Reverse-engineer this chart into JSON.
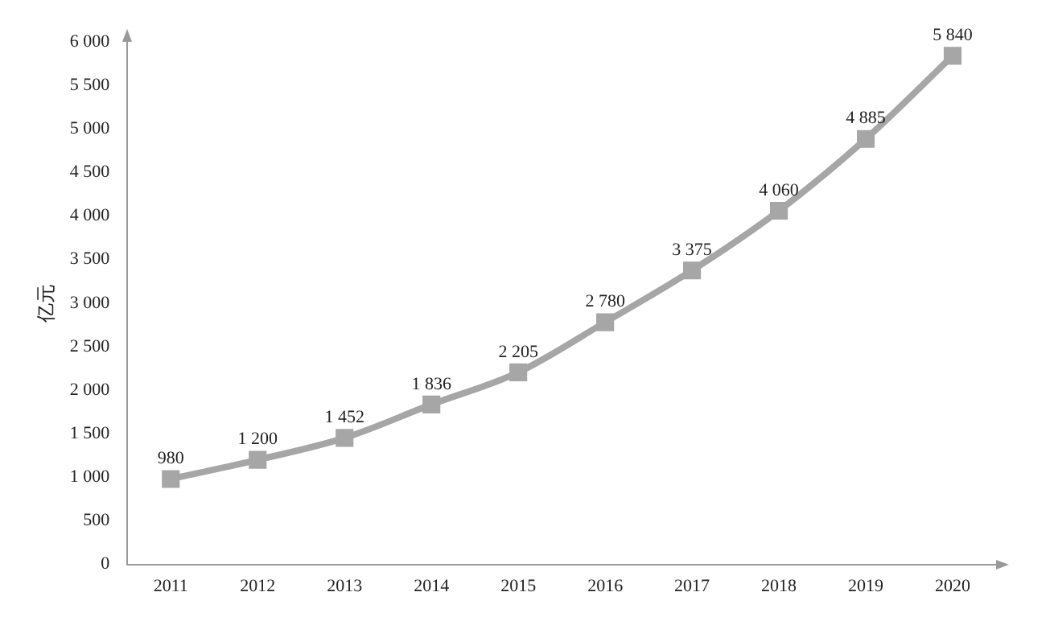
{
  "chart_data": {
    "type": "line",
    "ylabel": "亿元",
    "categories": [
      "2011",
      "2012",
      "2013",
      "2014",
      "2015",
      "2016",
      "2017",
      "2018",
      "2019",
      "2020"
    ],
    "series": [
      {
        "color": "#a6a6a6",
        "values": [
          980,
          1200,
          1452,
          1836,
          2205,
          2780,
          3375,
          4060,
          4885,
          5840
        ],
        "value_labels": [
          "980",
          "1 200",
          "1 452",
          "1 836",
          "2 205",
          "2 780",
          "3 375",
          "4 060",
          "4 885",
          "5 840"
        ]
      }
    ],
    "ylim": [
      0,
      6000
    ],
    "yticks": [
      0,
      500,
      {
        "value": 1000,
        "label": "1 000"
      },
      {
        "value": 1500,
        "label": "1 500"
      },
      {
        "value": 2000,
        "label": "2 000"
      },
      {
        "value": 2500,
        "label": "2 500"
      },
      {
        "value": 3000,
        "label": "3 000"
      },
      {
        "value": 3500,
        "label": "3 500"
      },
      {
        "value": 4000,
        "label": "4 000"
      },
      {
        "value": 4500,
        "label": "4 500"
      },
      {
        "value": 5000,
        "label": "5 000"
      },
      {
        "value": 5500,
        "label": "5 500"
      },
      {
        "value": 6000,
        "label": "6 000"
      }
    ],
    "grid": false,
    "legend": false,
    "marker": "square",
    "line_style": "solid"
  }
}
